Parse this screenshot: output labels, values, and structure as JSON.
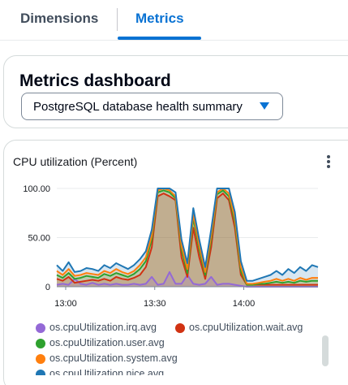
{
  "tabs": [
    {
      "label": "Dimensions",
      "active": false
    },
    {
      "label": "Metrics",
      "active": true
    }
  ],
  "dashboard": {
    "title": "Metrics dashboard",
    "selected": "PostgreSQL database health summary"
  },
  "widget": {
    "title": "CPU utilization (Percent)",
    "menu_icon": "more-vertical-icon"
  },
  "colors": {
    "accent": "#0972d3",
    "irq": "#9469d6",
    "wait": "#d13212",
    "user": "#2ea12e",
    "system": "#ff7f0e",
    "nice": "#1f77b4"
  },
  "chart_data": {
    "type": "area",
    "title": "CPU utilization (Percent)",
    "xlabel": "",
    "ylabel": "",
    "x_ticks": [
      "13:00",
      "13:30",
      "14:00"
    ],
    "y_ticks": [
      "0",
      "50.00",
      "100.00"
    ],
    "ylim": [
      0,
      100
    ],
    "x": [
      "12:57",
      "12:59",
      "13:01",
      "13:03",
      "13:05",
      "13:07",
      "13:09",
      "13:11",
      "13:13",
      "13:15",
      "13:17",
      "13:19",
      "13:21",
      "13:23",
      "13:25",
      "13:27",
      "13:29",
      "13:31",
      "13:33",
      "13:35",
      "13:37",
      "13:39",
      "13:41",
      "13:43",
      "13:45",
      "13:47",
      "13:49",
      "13:51",
      "13:53",
      "13:55",
      "13:57",
      "13:59",
      "14:01",
      "14:03",
      "14:05",
      "14:07",
      "14:09",
      "14:11",
      "14:13",
      "14:15",
      "14:17",
      "14:19",
      "14:21",
      "14:23",
      "14:25"
    ],
    "series": [
      {
        "name": "os.cpuUtilization.irq.avg",
        "color": "#9469d6",
        "values": [
          2,
          3,
          2,
          8,
          3,
          2,
          4,
          2,
          3,
          2,
          3,
          2,
          2,
          3,
          2,
          3,
          10,
          2,
          3,
          15,
          3,
          3,
          12,
          3,
          2,
          3,
          10,
          2,
          3,
          3,
          2,
          1,
          0,
          0,
          0,
          0,
          0,
          0,
          0,
          0,
          0,
          0,
          0,
          0,
          0
        ]
      },
      {
        "name": "os.cpuUtilization.wait.avg",
        "color": "#d13212",
        "values": [
          8,
          6,
          10,
          4,
          5,
          6,
          7,
          6,
          8,
          6,
          10,
          8,
          7,
          9,
          12,
          20,
          40,
          92,
          95,
          92,
          88,
          30,
          10,
          60,
          30,
          8,
          40,
          90,
          95,
          88,
          60,
          12,
          2,
          2,
          2,
          2,
          2,
          2,
          2,
          2,
          2,
          2,
          2,
          2,
          2
        ]
      },
      {
        "name": "os.cpuUtilization.user.avg",
        "color": "#2ea12e",
        "values": [
          12,
          9,
          14,
          8,
          9,
          11,
          10,
          9,
          13,
          11,
          14,
          12,
          10,
          13,
          18,
          26,
          48,
          96,
          98,
          96,
          90,
          38,
          14,
          70,
          38,
          12,
          48,
          94,
          98,
          92,
          66,
          16,
          2,
          2,
          3,
          3,
          4,
          5,
          4,
          5,
          4,
          6,
          5,
          6,
          6
        ]
      },
      {
        "name": "os.cpuUtilization.system.avg",
        "color": "#ff7f0e",
        "values": [
          16,
          12,
          18,
          11,
          12,
          14,
          13,
          12,
          16,
          14,
          18,
          15,
          13,
          16,
          22,
          30,
          52,
          98,
          100,
          98,
          92,
          42,
          18,
          74,
          42,
          15,
          52,
          96,
          100,
          95,
          70,
          20,
          3,
          3,
          4,
          5,
          6,
          8,
          6,
          8,
          6,
          9,
          7,
          9,
          9
        ]
      },
      {
        "name": "os.cpuUtilization.nice.avg",
        "color": "#1f77b4",
        "values": [
          22,
          16,
          25,
          15,
          16,
          19,
          18,
          16,
          22,
          19,
          24,
          21,
          18,
          22,
          28,
          36,
          58,
          100,
          100,
          100,
          96,
          48,
          24,
          80,
          48,
          20,
          58,
          100,
          100,
          100,
          76,
          26,
          6,
          6,
          8,
          10,
          12,
          16,
          12,
          18,
          14,
          20,
          16,
          22,
          20
        ]
      }
    ]
  },
  "legend": [
    {
      "label": "os.cpuUtilization.irq.avg",
      "color": "#9469d6"
    },
    {
      "label": "os.cpuUtilization.wait.avg",
      "color": "#d13212"
    },
    {
      "label": "os.cpuUtilization.user.avg",
      "color": "#2ea12e"
    },
    {
      "label": "os.cpuUtilization.system.avg",
      "color": "#ff7f0e"
    },
    {
      "label": "os.cpuUtilization.nice.avg",
      "color": "#1f77b4"
    }
  ]
}
